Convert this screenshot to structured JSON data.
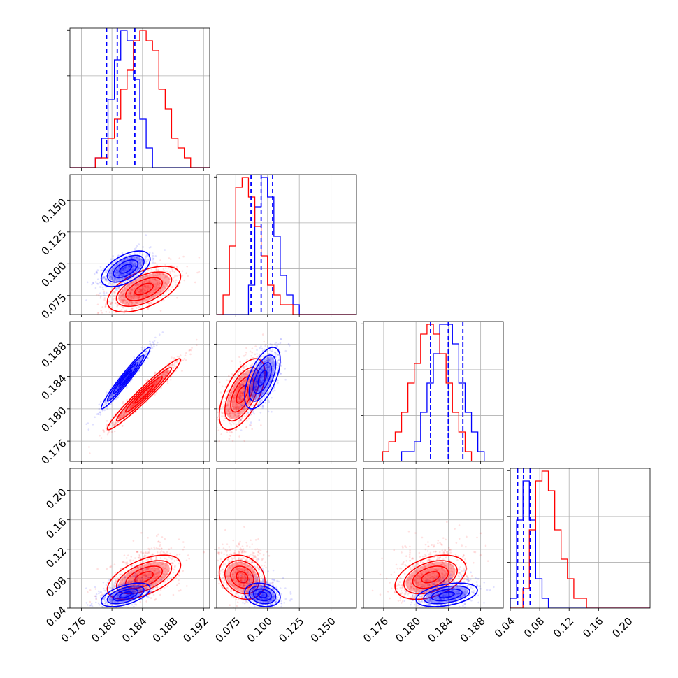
{
  "colors": {
    "series_a": "#0000ff",
    "series_b": "#ff0000",
    "grid": "#b0b0b0"
  },
  "chart_data": {
    "type": "corner",
    "title": "",
    "grid": true,
    "legend": "none",
    "series": [
      {
        "color": "#0000ff",
        "mean": [
          0.1818,
          0.096,
          0.1838,
          0.058
        ],
        "sd": [
          0.0016,
          0.007,
          0.0019,
          0.008
        ],
        "quantiles": [
          [
            0.1793,
            0.1807,
            0.183
          ],
          [
            0.087,
            0.095,
            0.104
          ],
          [
            0.1818,
            0.184,
            0.1858
          ],
          [
            0.05,
            0.058,
            0.067
          ]
        ]
      },
      {
        "color": "#ff0000",
        "mean": [
          0.1842,
          0.08,
          0.1818,
          0.082
        ],
        "sd": [
          0.0024,
          0.009,
          0.0022,
          0.015
        ]
      }
    ],
    "params": [
      {
        "range": [
          0.1745,
          0.1928
        ],
        "ticks": [
          "0.176",
          "0.180",
          "0.184",
          "0.188",
          "0.192"
        ]
      },
      {
        "range": [
          0.06,
          0.17
        ],
        "ticks": [
          "0.075",
          "0.100",
          "0.125",
          "0.150"
        ]
      },
      {
        "range": [
          0.1735,
          0.1908
        ],
        "ticks": [
          "0.176",
          "0.180",
          "0.184",
          "0.188"
        ]
      },
      {
        "range": [
          0.04,
          0.23
        ],
        "ticks": [
          "0.04",
          "0.08",
          "0.12",
          "0.16",
          "0.20"
        ]
      }
    ],
    "correlation": {
      "0-1": 0.55,
      "0-2": 0.97,
      "0-3": 0.55,
      "1-2": 0.6,
      "1-3": -0.2,
      "2-3": 0.4
    },
    "hist_ymax": [
      1.0,
      1.0,
      1.0,
      1.0
    ]
  }
}
